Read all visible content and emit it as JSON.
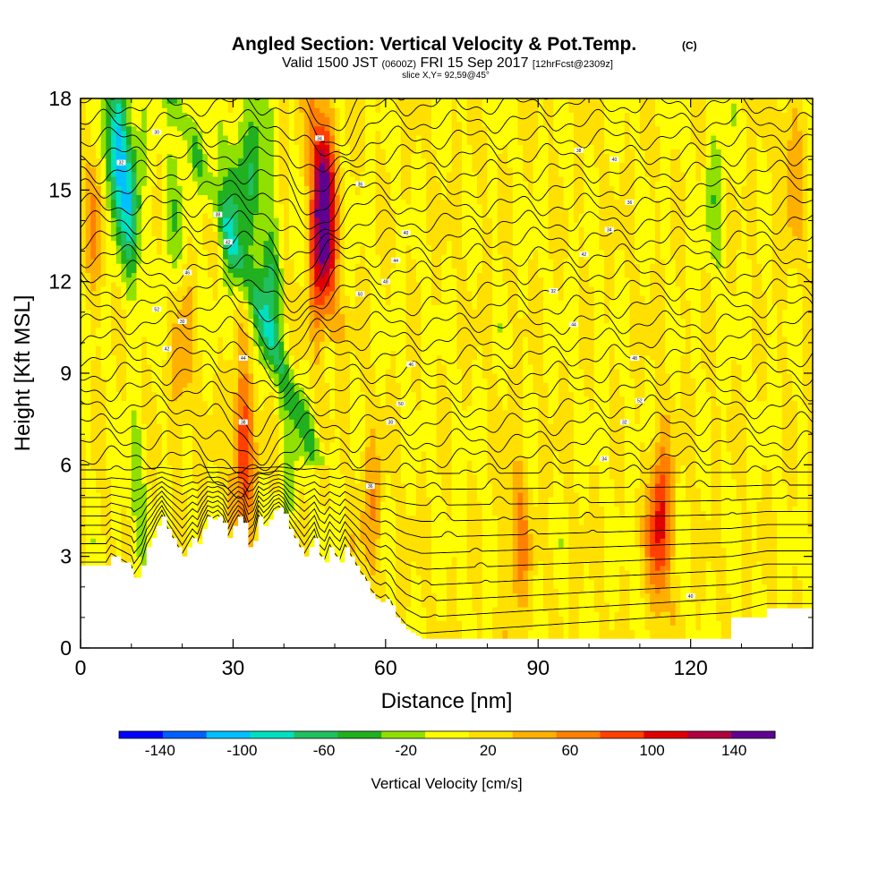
{
  "chart_data": {
    "type": "heatmap",
    "title": "Angled Section: Vertical Velocity & Pot.Temp.",
    "title_units": "(C)",
    "subtitle_main": "Valid 1500 JST",
    "subtitle_utc": "(0600Z)",
    "subtitle_date": "FRI 15 Sep 2017",
    "subtitle_fcst": "[12hrFcst@2309z]",
    "slice_info": "slice X,Y= 92,59@45°",
    "xlabel": "Distance [nm]",
    "ylabel": "Height [Kft MSL]",
    "xlim": [
      0,
      144
    ],
    "ylim": [
      0,
      18
    ],
    "x_ticks": [
      "0",
      "30",
      "60",
      "90",
      "120"
    ],
    "y_ticks": [
      "0",
      "3",
      "6",
      "9",
      "12",
      "15",
      "18"
    ],
    "colorbar": {
      "label": "Vertical Velocity [cm/s]",
      "tick_labels": [
        "-140",
        "-100",
        "-60",
        "-20",
        "20",
        "60",
        "100",
        "140"
      ],
      "range": [
        -160,
        160
      ],
      "colors": [
        "#0000ff",
        "#0060ff",
        "#00c0ff",
        "#00e0c0",
        "#20c060",
        "#20b020",
        "#90e000",
        "#ffff00",
        "#ffe000",
        "#ffb000",
        "#ff8000",
        "#ff4000",
        "#e00000",
        "#b00040",
        "#600090"
      ]
    },
    "velocity_features": [
      {
        "x": 7,
        "z": 16.5,
        "value": -110
      },
      {
        "x": 10,
        "z": 14.5,
        "value": -80
      },
      {
        "x": 30,
        "z": 14.5,
        "value": -60
      },
      {
        "x": 37,
        "z": 12,
        "value": -70
      },
      {
        "x": 34,
        "z": 16,
        "value": -60
      },
      {
        "x": 48,
        "z": 15,
        "value": 110
      },
      {
        "x": 47,
        "z": 12.5,
        "value": 70
      },
      {
        "x": 32,
        "z": 6.5,
        "value": 90
      },
      {
        "x": 114,
        "z": 4,
        "value": 100
      },
      {
        "x": 86,
        "z": 3.5,
        "value": 50
      },
      {
        "x": 20,
        "z": 9.5,
        "value": 40
      },
      {
        "x": 3,
        "z": 14,
        "value": 40
      },
      {
        "x": 57,
        "z": 4.5,
        "value": 40
      },
      {
        "x": 41,
        "z": 6,
        "value": -30
      },
      {
        "x": 11,
        "z": 5,
        "value": -30
      },
      {
        "x": 18,
        "z": 14,
        "value": -30
      },
      {
        "x": 125,
        "z": 15,
        "value": -30
      },
      {
        "x": 140,
        "z": 16,
        "value": 40
      }
    ],
    "terrain": {
      "x": [
        0,
        5,
        6,
        8,
        10,
        10.5,
        12,
        13,
        14,
        15,
        16,
        17,
        18,
        19,
        20,
        21,
        22,
        23,
        24,
        25,
        26,
        27,
        28,
        29,
        30,
        31,
        32,
        33,
        34,
        35,
        36,
        37,
        38,
        39,
        40,
        41,
        42,
        43,
        44,
        45,
        46,
        47,
        48,
        49,
        50,
        51,
        52,
        53,
        54,
        55,
        56,
        57,
        58,
        59,
        60,
        61,
        62,
        63,
        64,
        65,
        66,
        67,
        68,
        128,
        135,
        144
      ],
      "z": [
        2.7,
        2.7,
        3.0,
        2.8,
        2.6,
        2.3,
        2.7,
        3.3,
        3.6,
        4.0,
        4.3,
        3.9,
        3.6,
        3.3,
        3.0,
        3.3,
        3.6,
        3.4,
        3.9,
        4.3,
        4.2,
        4.3,
        4.1,
        3.6,
        4.0,
        4.3,
        4.1,
        3.3,
        3.5,
        4.3,
        4.0,
        4.2,
        4.5,
        4.6,
        4.4,
        3.9,
        3.6,
        3.3,
        3.0,
        3.3,
        3.6,
        3.0,
        2.8,
        3.3,
        3.0,
        2.8,
        3.3,
        3.0,
        2.7,
        2.4,
        2.2,
        1.8,
        1.6,
        1.5,
        1.6,
        1.4,
        1.0,
        0.8,
        0.6,
        0.5,
        0.4,
        0.3,
        0.3,
        1.0,
        1.3,
        1.3
      ]
    },
    "isentropes": {
      "count": 34,
      "labels": [
        "30",
        "32",
        "34",
        "36",
        "38",
        "40",
        "42",
        "44",
        "46",
        "48",
        "50",
        "52"
      ]
    }
  }
}
